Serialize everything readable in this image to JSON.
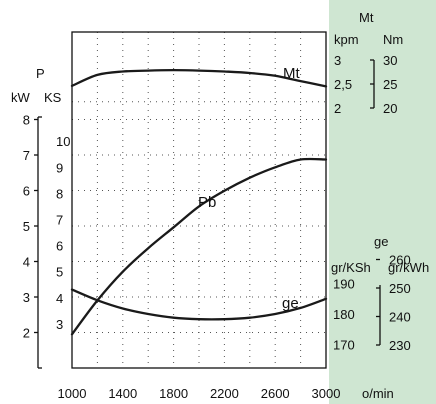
{
  "chart_data": {
    "type": "line",
    "colors": {
      "panel": "#cfe6d2",
      "curve": "#1a1a1a",
      "grid": "#555555"
    },
    "x": {
      "ticks": [
        1000,
        1400,
        1800,
        2200,
        2600,
        3000
      ],
      "grid": [
        1000,
        1200,
        1400,
        1600,
        1800,
        2000,
        2200,
        2400,
        2600,
        2800,
        3000
      ],
      "range": [
        1000,
        3000
      ],
      "unit_label": "o/min"
    },
    "axes": {
      "power": {
        "title": "P",
        "kw": {
          "label": "kW",
          "ticks": [
            2,
            3,
            4,
            5,
            6,
            7,
            8
          ]
        },
        "ks": {
          "label": "KS",
          "ticks": [
            3,
            4,
            5,
            6,
            7,
            8,
            9,
            10
          ]
        }
      },
      "torque": {
        "title": "Mt",
        "kpm": {
          "label": "kpm",
          "ticks": [
            "3",
            "2,5",
            "2"
          ]
        },
        "nm": {
          "label": "Nm",
          "ticks": [
            30,
            25,
            20
          ]
        }
      },
      "consumption": {
        "title": "ge",
        "grksh": {
          "label": "gr/KSh",
          "ticks": [
            190,
            180,
            170
          ]
        },
        "grkwh": {
          "label": "gr/kWh",
          "ticks": [
            260,
            250,
            240,
            230
          ]
        }
      }
    },
    "series": [
      {
        "name": "Mt",
        "unit": "Nm",
        "x": [
          1000,
          1200,
          1400,
          1600,
          1800,
          2000,
          2200,
          2400,
          2600,
          2800,
          3000
        ],
        "y": [
          24.6,
          26.9,
          27.6,
          27.8,
          27.9,
          27.8,
          27.6,
          27.3,
          26.7,
          25.6,
          24.5
        ]
      },
      {
        "name": "Pb",
        "unit": "KS",
        "x": [
          1000,
          1200,
          1400,
          1600,
          1800,
          2000,
          2200,
          2400,
          2600,
          2800,
          3000
        ],
        "y": [
          2.6,
          3.9,
          5.0,
          5.9,
          6.7,
          7.5,
          8.1,
          8.6,
          9.0,
          9.3,
          9.3
        ]
      },
      {
        "name": "ge",
        "unit": "gr/KSh",
        "x": [
          1000,
          1200,
          1400,
          1600,
          1800,
          2000,
          2200,
          2400,
          2600,
          2800,
          3000
        ],
        "y": [
          188,
          184.5,
          181.8,
          180.0,
          178.8,
          178.3,
          178.3,
          178.8,
          180.0,
          182.0,
          185.0
        ]
      }
    ]
  }
}
